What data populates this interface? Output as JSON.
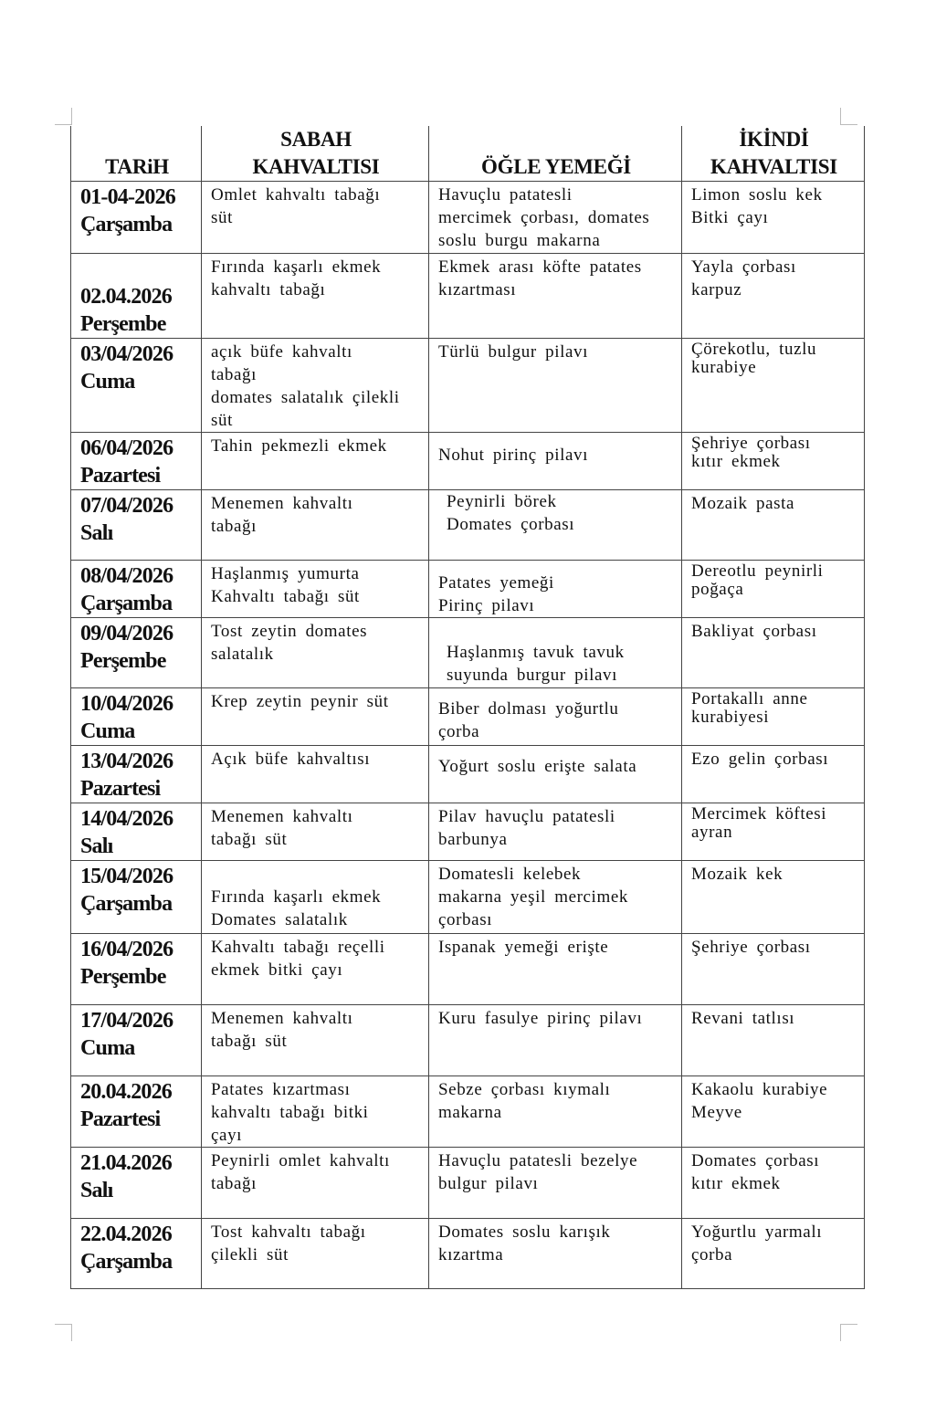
{
  "headers": {
    "date": "TARiH",
    "breakfast": "SABAH\nKAHVALTISI",
    "lunch": "ÖĞLE  YEMEĞİ",
    "afternoon": "İKİNDİ\nKAHVALTISI"
  },
  "rows": [
    {
      "date": "01-04-2026\nÇarşamba",
      "breakfast": "Omlet kahvaltı tabağı\nsüt",
      "lunch": "Havuçlu patatesli\nmercimek çorbası, domates\nsoslu burgu makarna",
      "afternoon": "Limon soslu kek\nBitki çayı"
    },
    {
      "date": "\n02.04.2026\n  Perşembe",
      "breakfast": "Fırında kaşarlı ekmek\nkahvaltı tabağı",
      "lunch": "Ekmek arası köfte patates\nkızartması",
      "afternoon": "Yayla çorbası\nkarpuz"
    },
    {
      "date": "03/04/2026\nCuma",
      "breakfast": "açık büfe kahvaltı\ntabağı\ndomates salatalık çilekli\nsüt",
      "lunch": "Türlü bulgur pilavı",
      "afternoon": "Çörekotlu, tuzlu\nkurabiye"
    },
    {
      "date": "06/04/2026\nPazartesi",
      "breakfast": "Tahin pekmezli ekmek",
      "lunch": "Nohut pirinç pilavı",
      "afternoon": "Şehriye çorbası\nkıtır ekmek"
    },
    {
      "date": "07/04/2026\nSalı",
      "breakfast": "Menemen kahvaltı\ntabağı",
      "lunch": "Peynirli börek\nDomates çorbası",
      "afternoon": "Mozaik pasta"
    },
    {
      "date": "08/04/2026\nÇarşamba",
      "breakfast": "Haşlanmış yumurta\nKahvaltı tabağı süt",
      "lunch": "Patates yemeği\nPirinç pilavı",
      "afternoon": "Dereotlu peynirli\npoğaça"
    },
    {
      "date": "09/04/2026\nPerşembe",
      "breakfast": "Tost zeytin domates\nsalatalık",
      "lunch": "Haşlanmış tavuk tavuk\nsuyunda burgur pilavı",
      "afternoon": "Bakliyat çorbası"
    },
    {
      "date": "10/04/2026\nCuma",
      "breakfast": "Krep zeytin peynir süt",
      "lunch": "Biber dolması yoğurtlu\nçorba",
      "afternoon": "Portakallı anne\nkurabiyesi"
    },
    {
      "date": "13/04/2026\nPazartesi",
      "breakfast": "Açık büfe kahvaltısı",
      "lunch": "Yoğurt soslu erişte salata",
      "afternoon": "Ezo gelin çorbası"
    },
    {
      "date": "14/04/2026\nSalı",
      "breakfast": "Menemen kahvaltı\ntabağı süt",
      "lunch": "Pilav havuçlu patatesli\nbarbunya",
      "afternoon": "Mercimek köftesi\nayran"
    },
    {
      "date": "15/04/2026\nÇarşamba",
      "breakfast": "Fırında kaşarlı ekmek\nDomates salatalık",
      "lunch": "Domatesli kelebek\nmakarna yeşil mercimek\nçorbası",
      "afternoon": "Mozaik kek"
    },
    {
      "date": "16/04/2026\nPerşembe",
      "breakfast": "Kahvaltı tabağı reçelli\nekmek bitki çayı",
      "lunch": "Ispanak yemeği erişte",
      "afternoon": "Şehriye çorbası"
    },
    {
      "date": "17/04/2026\nCuma",
      "breakfast": "Menemen kahvaltı\ntabağı süt",
      "lunch": "Kuru fasulye pirinç pilavı",
      "afternoon": "Revani tatlısı"
    },
    {
      "date": "20.04.2026\nPazartesi",
      "breakfast": "Patates kızartması\nkahvaltı tabağı bitki\nçayı",
      "lunch": "Sebze çorbası kıymalı\nmakarna",
      "afternoon": "Kakaolu kurabiye\nMeyve"
    },
    {
      "date": "21.04.2026\nSalı",
      "breakfast": "Peynirli omlet kahvaltı\ntabağı",
      "lunch": "Havuçlu patatesli bezelye\nbulgur pilavı",
      "afternoon": "Domates çorbası\nkıtır ekmek"
    },
    {
      "date": "22.04.2026\nÇarşamba",
      "breakfast": "Tost kahvaltı tabağı\nçilekli süt",
      "lunch": "Domates soslu karışık\nkızartma",
      "afternoon": "Yoğurtlu yarmalı\nçorba"
    }
  ]
}
